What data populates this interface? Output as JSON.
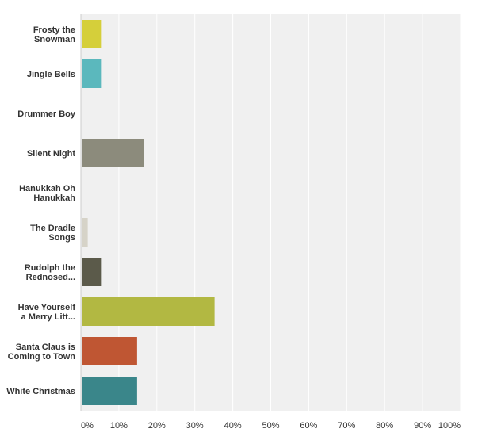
{
  "chart_data": {
    "type": "bar",
    "orientation": "horizontal",
    "categories": [
      [
        "Frosty the",
        "Snowman"
      ],
      [
        "Jingle Bells"
      ],
      [
        "Drummer Boy"
      ],
      [
        "Silent Night"
      ],
      [
        "Hanukkah Oh",
        "Hanukkah"
      ],
      [
        "The Dradle",
        "Songs"
      ],
      [
        "Rudolph the",
        "Rednosed..."
      ],
      [
        "Have Yourself",
        "a Merry Litt..."
      ],
      [
        "Santa Claus is",
        "Coming to Town"
      ],
      [
        "White Christmas"
      ]
    ],
    "values": [
      5.5,
      5.5,
      0,
      16.7,
      0,
      1.8,
      5.5,
      35.2,
      14.8,
      14.8
    ],
    "colors": [
      "#d5cf3a",
      "#5bb8bd",
      "#aaaaaa",
      "#8c8b7c",
      "#aaaaaa",
      "#d6d3c8",
      "#5b5a4a",
      "#b2b842",
      "#bf5633",
      "#3a868a"
    ],
    "xlim": [
      0,
      100
    ],
    "xticks": [
      "0%",
      "10%",
      "20%",
      "30%",
      "40%",
      "50%",
      "60%",
      "70%",
      "80%",
      "90%",
      "100%"
    ],
    "grid": true,
    "background": "#f0f0f0"
  }
}
